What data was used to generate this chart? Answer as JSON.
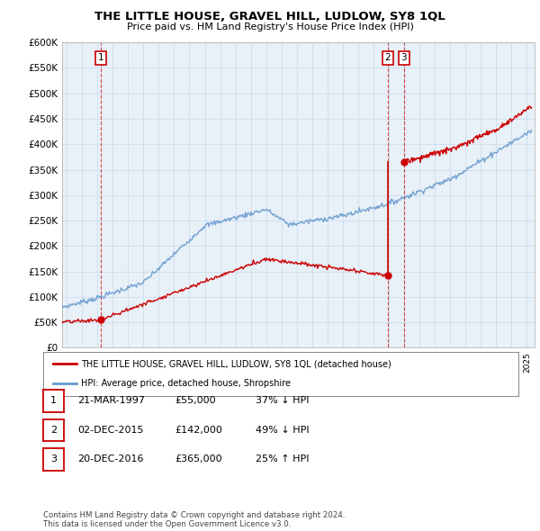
{
  "title": "THE LITTLE HOUSE, GRAVEL HILL, LUDLOW, SY8 1QL",
  "subtitle": "Price paid vs. HM Land Registry's House Price Index (HPI)",
  "ylim": [
    0,
    600000
  ],
  "yticks": [
    0,
    50000,
    100000,
    150000,
    200000,
    250000,
    300000,
    350000,
    400000,
    450000,
    500000,
    550000,
    600000
  ],
  "xlim_start": 1994.7,
  "xlim_end": 2025.5,
  "hpi_color": "#6699cc",
  "price_color": "#cc0000",
  "dashed_color": "#cc0000",
  "chart_bg": "#e8f0f8",
  "transactions": [
    {
      "num": 1,
      "date": "21-MAR-1997",
      "price": 55000,
      "year": 1997.22,
      "pct": "37%",
      "dir": "↓"
    },
    {
      "num": 2,
      "date": "02-DEC-2015",
      "price": 142000,
      "year": 2015.92,
      "pct": "49%",
      "dir": "↓"
    },
    {
      "num": 3,
      "date": "20-DEC-2016",
      "price": 365000,
      "year": 2016.97,
      "pct": "25%",
      "dir": "↑"
    }
  ],
  "legend_label_red": "THE LITTLE HOUSE, GRAVEL HILL, LUDLOW, SY8 1QL (detached house)",
  "legend_label_blue": "HPI: Average price, detached house, Shropshire",
  "footer": "Contains HM Land Registry data © Crown copyright and database right 2024.\nThis data is licensed under the Open Government Licence v3.0.",
  "table_rows": [
    [
      "1",
      "21-MAR-1997",
      "£55,000",
      "37% ↓ HPI"
    ],
    [
      "2",
      "02-DEC-2015",
      "£142,000",
      "49% ↓ HPI"
    ],
    [
      "3",
      "20-DEC-2016",
      "£365,000",
      "25% ↑ HPI"
    ]
  ],
  "background_color": "#ffffff",
  "grid_color": "#ccddee"
}
